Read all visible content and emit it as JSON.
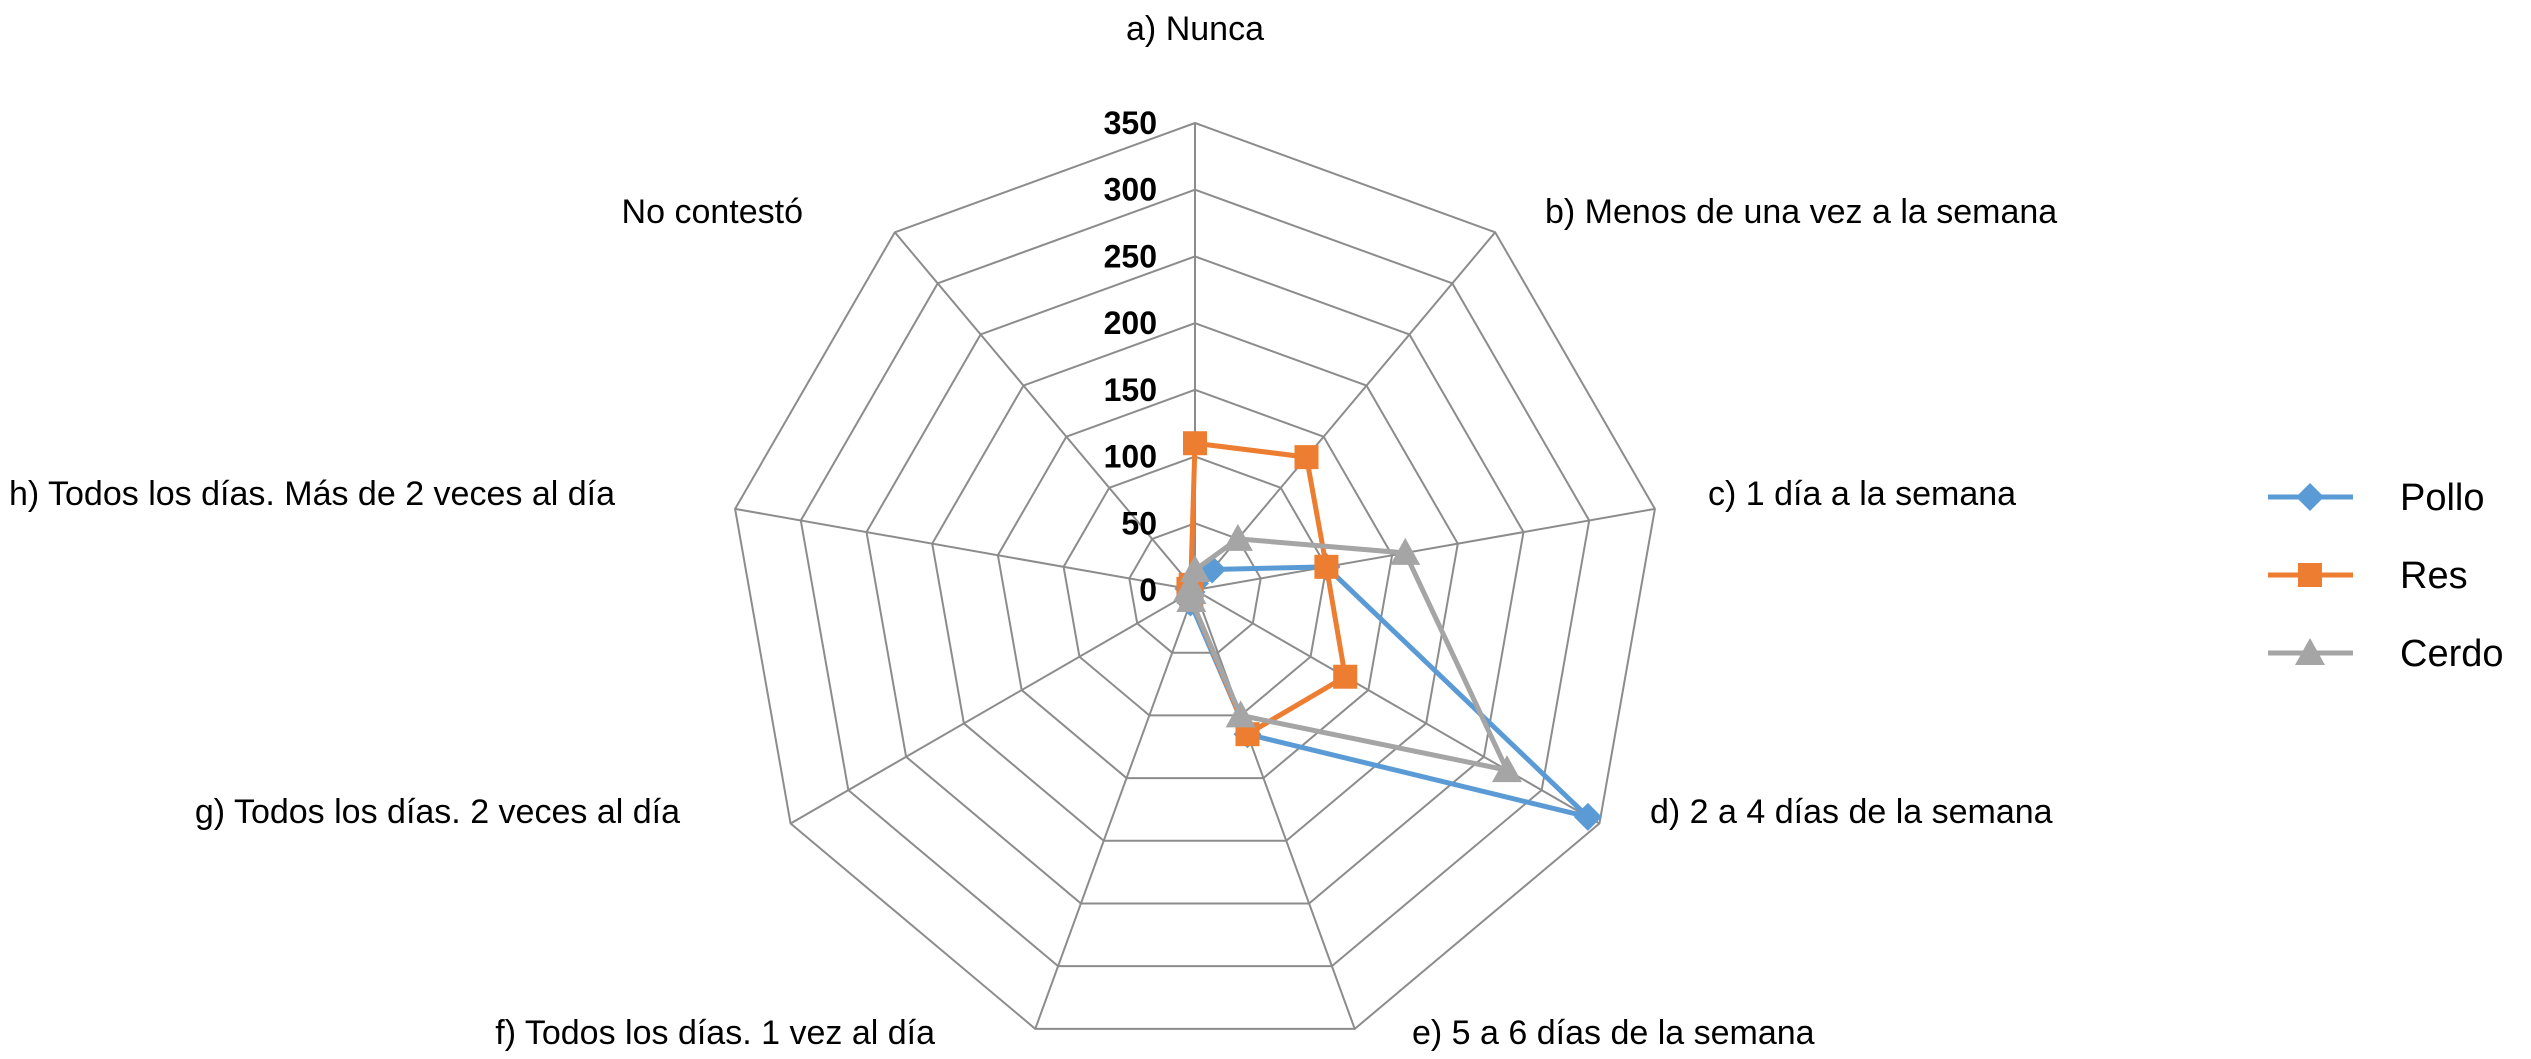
{
  "chart_data": {
    "type": "radar",
    "title": "",
    "categories": [
      "a) Nunca",
      "b) Menos de una vez  a la semana",
      "c) 1 día a la semana",
      "d) 2 a 4 días de la semana",
      "e) 5 a 6 días de la semana",
      "f) Todos los días. 1 vez al día",
      "g) Todos los días. 2 veces al día",
      "h) Todos los días. Más de 2 veces al día",
      "No contestó"
    ],
    "rlim": [
      0,
      350
    ],
    "ticks": [
      "0",
      "50",
      "100",
      "150",
      "200",
      "250",
      "300",
      "350"
    ],
    "legend_position": "right",
    "series": [
      {
        "name": "Pollo",
        "color": "#5B9BD5",
        "marker": "diamond",
        "values": [
          5,
          20,
          100,
          340,
          115,
          10,
          3,
          5,
          5
        ]
      },
      {
        "name": "Res",
        "color": "#ED7D31",
        "marker": "square",
        "values": [
          110,
          130,
          100,
          130,
          115,
          8,
          3,
          5,
          5
        ]
      },
      {
        "name": "Cerdo",
        "color": "#A5A5A5",
        "marker": "triangle",
        "values": [
          15,
          50,
          160,
          270,
          100,
          8,
          3,
          5,
          5
        ]
      }
    ]
  }
}
